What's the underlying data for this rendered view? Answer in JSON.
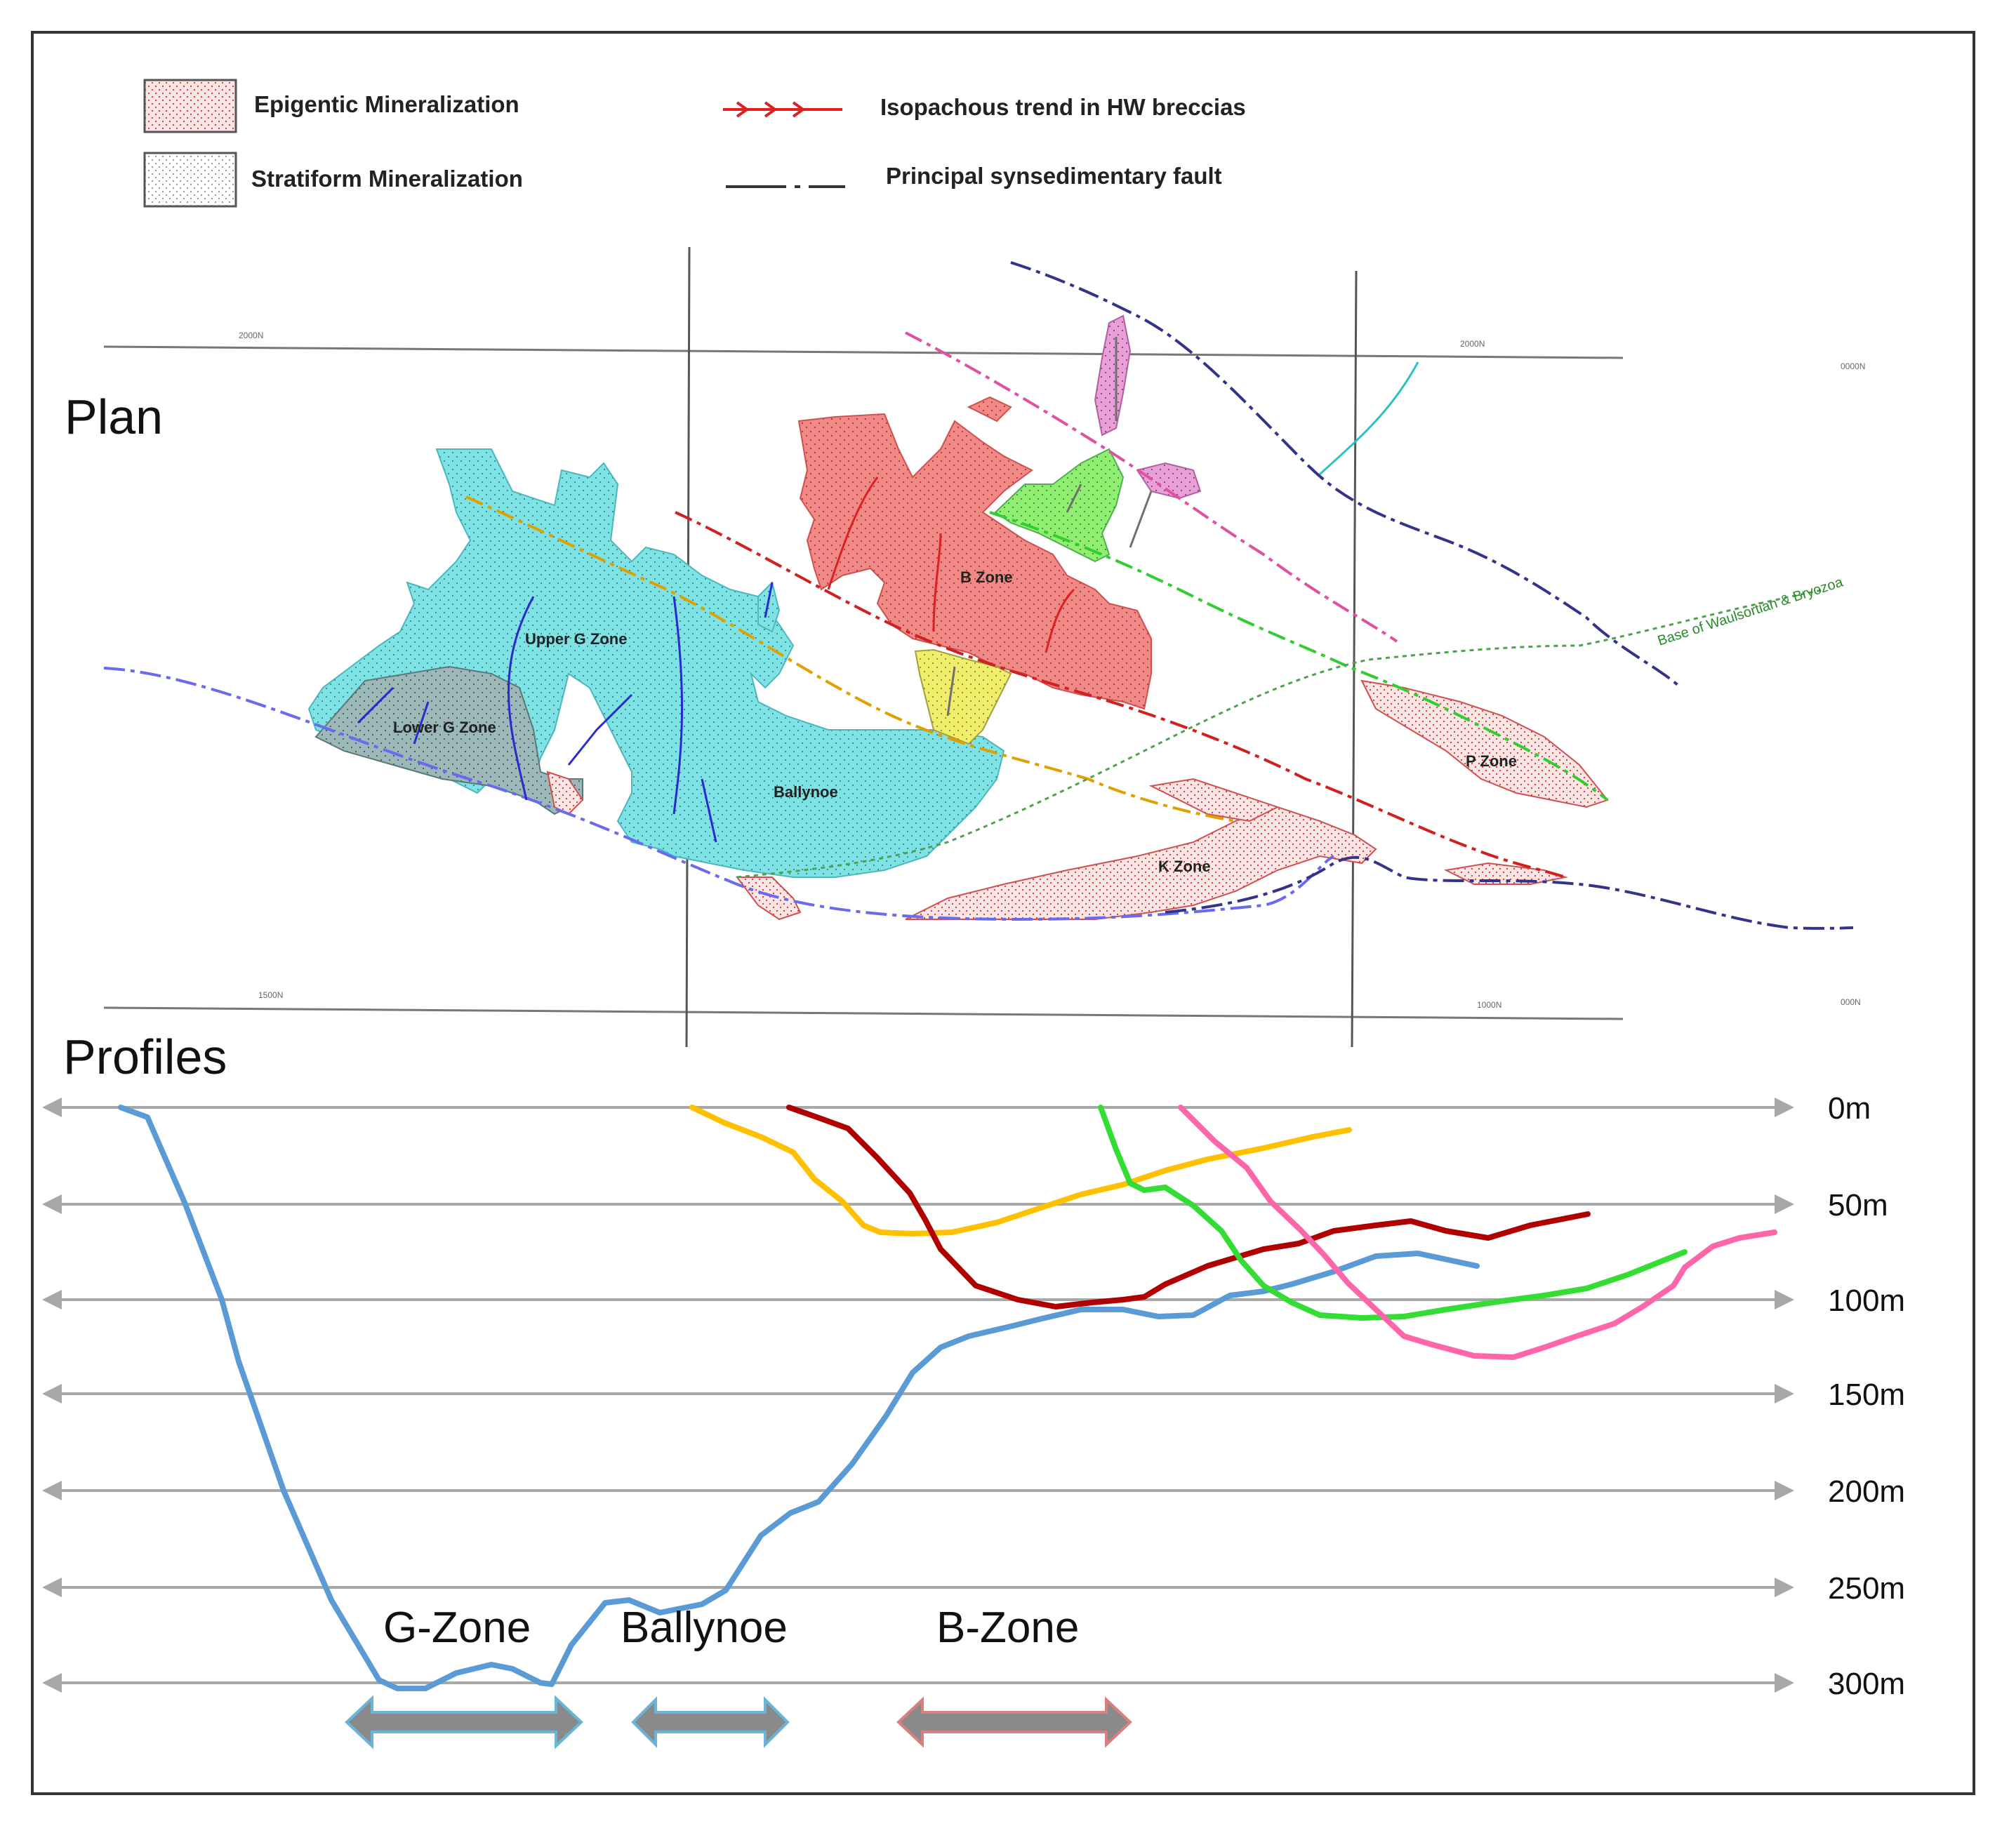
{
  "legend": {
    "epigentic": "Epigentic Mineralization",
    "stratiform": "Stratiform Mineralization",
    "isopachous": "Isopachous trend in HW breccias",
    "fault": "Principal synsedimentary fault"
  },
  "plan": {
    "title": "Plan",
    "zones": {
      "upper_g": "Upper G Zone",
      "lower_g": "Lower G Zone",
      "b_zone": "B Zone",
      "ballynoe": "Ballynoe",
      "k_zone": "K Zone",
      "p_zone": "P Zone"
    },
    "grid_labels": [
      "2000N",
      "2000N",
      "0000N",
      "1500N",
      "1000N",
      "000N"
    ],
    "rotated_note": "Base of Waulsortian & Bryozoa"
  },
  "profiles": {
    "title": "Profiles",
    "depth_ticks": [
      "0m",
      "50m",
      "100m",
      "150m",
      "200m",
      "250m",
      "300m"
    ],
    "zone_labels": [
      "G-Zone",
      "Ballynoe",
      "B-Zone"
    ]
  },
  "colors": {
    "blue": "#5b9bd5",
    "orange": "#ffc000",
    "darkred": "#b00000",
    "green": "#33dd33",
    "pink": "#ff66aa",
    "stratiform_fill": "#7fe3e6",
    "epigentic_fill": "#ef8a86",
    "yellow_fill": "#f0ee6a",
    "lime_fill": "#90ee70",
    "pink_fill": "#e8a0d8"
  }
}
